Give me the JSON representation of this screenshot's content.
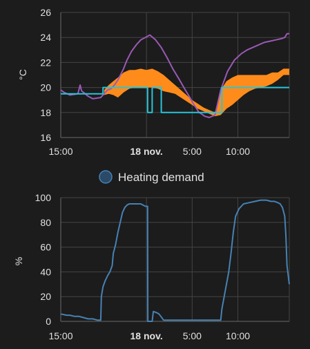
{
  "chart_data": [
    {
      "type": "line",
      "ylabel": "°C",
      "ylim": [
        16,
        26
      ],
      "yticks": [
        "26",
        "24",
        "22",
        "20",
        "18",
        "16"
      ],
      "xticks": [
        {
          "label": "15:00",
          "bold": false
        },
        {
          "label": "18 nov.",
          "bold": true
        },
        {
          "label": "5:00",
          "bold": false
        },
        {
          "label": "10:00",
          "bold": false
        }
      ],
      "grid": true,
      "colors": {
        "measured": "#9b59b6",
        "setpoint": "#26c6da",
        "band": "#ff8c1a"
      },
      "series": [
        {
          "key": "measured",
          "x": [
            0,
            0.3,
            0.8,
            1.5,
            1.7,
            1.8,
            1.85,
            2.0,
            2.4,
            2.8,
            3.5,
            3.9,
            4.1,
            4.4,
            4.7,
            5.0,
            5.5,
            5.8,
            6.2,
            6.6,
            7.0,
            7.4,
            7.8,
            8.3,
            8.8,
            9.3,
            9.8,
            10.4,
            10.9,
            11.3,
            11.6,
            11.9,
            12.1,
            12.3,
            12.6,
            13.0,
            13.5,
            14.0,
            14.6,
            15.2,
            15.8,
            16.3,
            16.8,
            17.3,
            17.8,
            18.3,
            18.8,
            19.3,
            19.6,
            19.8,
            20.0
          ],
          "y": [
            19.8,
            19.6,
            19.4,
            19.5,
            20.2,
            19.8,
            19.7,
            19.6,
            19.3,
            19.1,
            19.2,
            19.6,
            19.8,
            19.9,
            20.2,
            20.6,
            21.5,
            22.2,
            22.9,
            23.4,
            23.8,
            24.0,
            24.2,
            23.8,
            23.2,
            22.4,
            21.5,
            20.6,
            19.8,
            19.2,
            18.7,
            18.3,
            18.0,
            17.9,
            17.7,
            17.6,
            17.8,
            19.8,
            21.3,
            22.2,
            22.7,
            23.0,
            23.2,
            23.4,
            23.6,
            23.7,
            23.8,
            23.9,
            24.0,
            24.3,
            24.3
          ]
        },
        {
          "key": "setpoint",
          "x": [
            0,
            3.7,
            3.7,
            7.6,
            7.6,
            8.0,
            8.0,
            8.8,
            8.8,
            9.4,
            9.4,
            14.1,
            14.1,
            20.0
          ],
          "y": [
            19.5,
            19.5,
            20.0,
            20.0,
            18.0,
            18.0,
            20.0,
            20.0,
            18.0,
            18.0,
            18.0,
            18.0,
            20.0,
            20.0
          ]
        }
      ],
      "band": {
        "x": [
          3.8,
          4.2,
          4.6,
          5.0,
          5.5,
          6.0,
          6.5,
          7.0,
          7.5,
          8.0,
          8.5,
          9.0,
          9.5,
          10.0,
          10.5,
          11.0,
          11.5,
          12.0,
          12.5,
          13.0,
          13.5,
          14.0,
          14.5,
          15.0,
          15.5,
          16.0,
          16.5,
          17.0,
          17.5,
          18.0,
          18.5,
          19.0,
          19.5,
          20.0
        ],
        "upper": [
          19.8,
          20.2,
          20.5,
          20.8,
          21.2,
          21.4,
          21.4,
          21.5,
          21.4,
          21.5,
          21.3,
          21.0,
          20.6,
          20.2,
          19.8,
          19.4,
          19.0,
          18.7,
          18.4,
          18.2,
          18.0,
          19.8,
          20.5,
          20.8,
          21.0,
          21.0,
          21.0,
          21.0,
          21.0,
          21.0,
          21.2,
          21.2,
          21.5,
          21.5
        ],
        "lower": [
          19.4,
          19.5,
          19.4,
          19.2,
          19.6,
          19.9,
          20.0,
          20.0,
          20.0,
          20.0,
          19.9,
          19.7,
          19.6,
          19.5,
          19.2,
          18.9,
          18.6,
          18.3,
          18.1,
          17.9,
          17.7,
          17.8,
          18.3,
          18.6,
          19.0,
          19.4,
          19.7,
          19.9,
          20.0,
          20.1,
          20.3,
          20.6,
          21.0,
          21.0
        ]
      }
    },
    {
      "type": "line",
      "ylabel": "%",
      "ylim": [
        0,
        100
      ],
      "yticks": [
        "100",
        "80",
        "60",
        "40",
        "20",
        "0"
      ],
      "xticks": [
        {
          "label": "15:00",
          "bold": false
        },
        {
          "label": "18 nov.",
          "bold": true
        },
        {
          "label": "5:00",
          "bold": false
        },
        {
          "label": "10:00",
          "bold": false
        }
      ],
      "grid": true,
      "legend": {
        "label": "Heating demand",
        "color": "#4682b4"
      },
      "color": "#4682b4",
      "series": [
        {
          "name": "Heating demand",
          "x": [
            0,
            0.5,
            0.8,
            1.2,
            1.6,
            2.0,
            2.4,
            2.8,
            3.2,
            3.5,
            3.55,
            3.7,
            3.9,
            4.1,
            4.3,
            4.5,
            4.6,
            4.8,
            5.0,
            5.2,
            5.4,
            5.6,
            5.8,
            6.0,
            6.2,
            6.4,
            6.6,
            6.8,
            7.0,
            7.2,
            7.4,
            7.6,
            7.62,
            8.0,
            8.1,
            8.4,
            8.6,
            9.0,
            9.5,
            10,
            11,
            12,
            13,
            14.0,
            14.1,
            14.3,
            14.5,
            14.7,
            14.9,
            15.1,
            15.3,
            15.6,
            16.0,
            16.5,
            17.0,
            17.5,
            18.0,
            18.4,
            18.7,
            19.0,
            19.2,
            19.4,
            19.6,
            19.7,
            19.8,
            20.0
          ],
          "y": [
            6,
            5,
            5,
            4,
            4,
            3,
            2,
            2,
            1,
            1,
            20,
            28,
            33,
            37,
            40,
            45,
            55,
            62,
            72,
            80,
            88,
            92,
            94,
            95,
            95,
            95,
            95,
            95,
            95,
            94,
            93,
            93,
            0,
            0,
            8,
            7,
            6,
            1,
            1,
            1,
            1,
            1,
            1,
            1,
            10,
            20,
            30,
            40,
            55,
            72,
            85,
            91,
            95,
            96,
            97,
            98,
            98,
            97,
            97,
            96,
            95,
            92,
            85,
            70,
            45,
            30
          ]
        }
      ]
    }
  ]
}
